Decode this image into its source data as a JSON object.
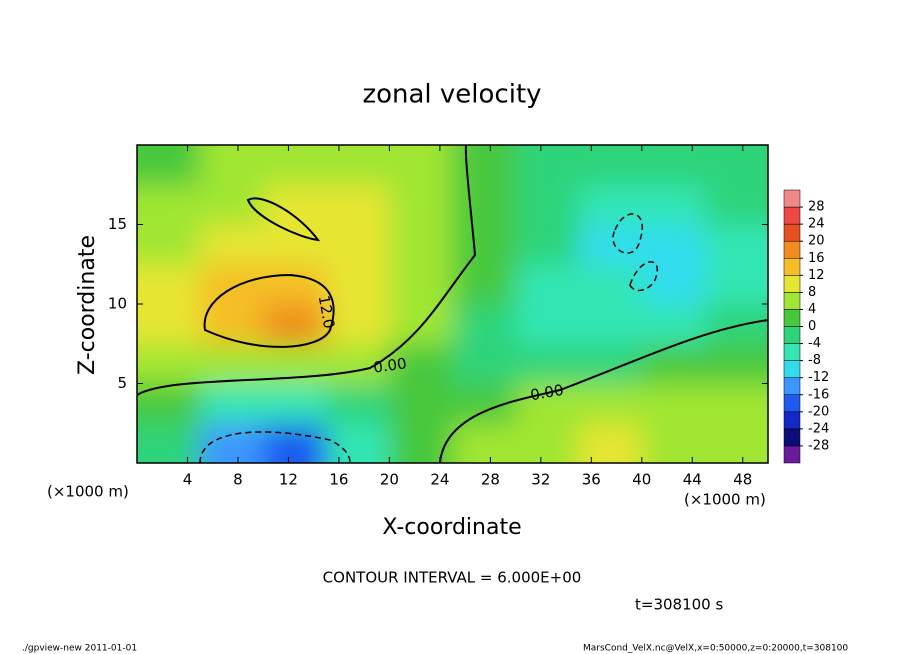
{
  "chart_data": {
    "type": "heatmap",
    "title": "zonal velocity",
    "x_label": "X-coordinate",
    "y_label": "Z-coordinate",
    "axis_unit": "(×1000 m)",
    "xlim": [
      0,
      50
    ],
    "ylim": [
      0,
      20
    ],
    "xticks": [
      4,
      8,
      12,
      16,
      20,
      24,
      28,
      32,
      36,
      40,
      44,
      48
    ],
    "yticks": [
      5,
      10,
      15
    ],
    "x": [
      2.5,
      7.5,
      12.5,
      17.5,
      22.5,
      27.5,
      32.5,
      37.5,
      42.5,
      47.5
    ],
    "y": [
      1.25,
      3.75,
      6.25,
      8.75,
      11.25,
      13.75,
      16.25,
      18.75
    ],
    "values": [
      [
        -4,
        -16,
        -18,
        -6,
        2,
        4,
        6,
        8,
        6,
        4
      ],
      [
        2,
        -6,
        -8,
        -4,
        2,
        2,
        4,
        6,
        6,
        4
      ],
      [
        6,
        6,
        6,
        4,
        0,
        -4,
        -4,
        -2,
        0,
        2
      ],
      [
        8,
        14,
        16,
        8,
        4,
        -2,
        -6,
        -8,
        -6,
        -2
      ],
      [
        8,
        12,
        12,
        8,
        4,
        0,
        -6,
        -8,
        -10,
        -6
      ],
      [
        6,
        8,
        8,
        8,
        4,
        0,
        -4,
        -10,
        -10,
        -6
      ],
      [
        4,
        6,
        8,
        8,
        4,
        0,
        -2,
        -6,
        -6,
        -4
      ],
      [
        2,
        4,
        6,
        6,
        4,
        0,
        -2,
        -4,
        -4,
        -2
      ]
    ],
    "colorbar": {
      "ticks": [
        -28,
        -24,
        -20,
        -16,
        -12,
        -8,
        -4,
        0,
        4,
        8,
        12,
        16,
        20,
        24,
        28
      ],
      "colors": [
        "#6a1b9a",
        "#0c0c7a",
        "#1428c8",
        "#1e5af0",
        "#3c96ff",
        "#33ddee",
        "#33e6b4",
        "#2ed47a",
        "#46c83c",
        "#a0e632",
        "#e6e632",
        "#f5be28",
        "#f08c1e",
        "#e6501e",
        "#f04646",
        "#f08a8a"
      ]
    },
    "contour_labels": [
      "12.0",
      "0.00",
      "0.00"
    ],
    "contour_interval": "CONTOUR INTERVAL = 6.000E+00",
    "time_label": "t=308100 s",
    "footer_left": "./gpview-new  2011-01-01",
    "footer_right": "MarsCond_VelX.nc@VelX,x=0:50000,z=0:20000,t=308100"
  }
}
